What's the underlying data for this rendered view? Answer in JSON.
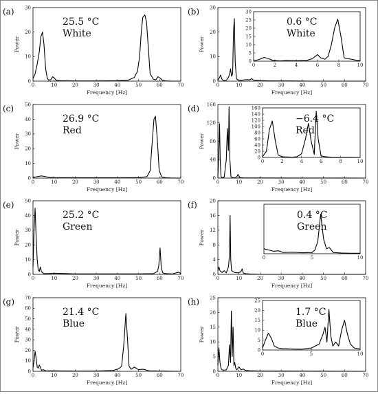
{
  "chart_data": [
    {
      "panel": "(a)",
      "type": "line",
      "annotation": [
        "25.5 °C",
        "White"
      ],
      "xlabel": "Frequency [Hz]",
      "ylabel": "Power",
      "xlim": [
        0,
        70
      ],
      "ylim": [
        0,
        30
      ],
      "xticks": [
        0,
        10,
        20,
        30,
        40,
        50,
        60,
        70
      ],
      "yticks": [
        0,
        10,
        20,
        30
      ],
      "x": [
        0,
        1,
        2,
        3,
        3.7,
        4.5,
        5.2,
        6,
        6.8,
        7.5,
        8.5,
        9.3,
        10.2,
        11,
        13,
        20,
        30,
        40,
        45,
        48,
        49.5,
        50.5,
        51.3,
        52,
        53,
        53.8,
        54.6,
        55.5,
        57,
        58.2,
        59.2,
        60.2,
        61.5,
        63,
        66,
        70
      ],
      "series": [
        {
          "values": [
            1,
            3,
            7,
            12,
            18,
            20,
            15,
            5,
            1,
            0.4,
            0.6,
            1.8,
            1.2,
            0.3,
            0.2,
            0.1,
            0.1,
            0.2,
            0.4,
            1.5,
            4,
            10,
            20,
            26,
            27,
            24,
            14,
            3,
            0.8,
            0.5,
            1.8,
            1.2,
            0.3,
            0.1,
            0,
            0
          ]
        }
      ]
    },
    {
      "panel": "(b)",
      "type": "line",
      "annotation": [
        "0.6 °C",
        "White"
      ],
      "xlabel": "Frequency [Hz]",
      "ylabel": "Power",
      "xlim": [
        0,
        70
      ],
      "ylim": [
        0,
        30
      ],
      "xticks": [
        0,
        10,
        20,
        30,
        40,
        50,
        60,
        70
      ],
      "yticks": [
        0,
        10,
        20,
        30
      ],
      "x": [
        0,
        0.8,
        1.3,
        1.8,
        2.5,
        4,
        5,
        5.6,
        6,
        6.5,
        7,
        7.4,
        7.8,
        8.2,
        8.8,
        9.5,
        11,
        13,
        15,
        16,
        17,
        20,
        25,
        35,
        45,
        55,
        70
      ],
      "series": [
        {
          "values": [
            0.5,
            1.5,
            2.5,
            1,
            0.3,
            0.4,
            1.5,
            3,
            5,
            2,
            3,
            20,
            25.5,
            8,
            1,
            0.5,
            0.3,
            0.6,
            0.5,
            1,
            0.4,
            0.2,
            0.1,
            0.1,
            0,
            0,
            0
          ]
        }
      ],
      "inset": {
        "xlim": [
          0,
          10
        ],
        "ylim": [
          0,
          30
        ],
        "xticks": [
          0,
          2,
          4,
          6,
          8,
          10
        ],
        "yticks": [
          0,
          5,
          10,
          15,
          20,
          25,
          30
        ],
        "x": [
          0,
          0.5,
          1,
          1.4,
          1.8,
          2.5,
          3,
          4,
          5,
          5.5,
          6,
          6.3,
          6.7,
          7,
          7.3,
          7.6,
          7.9,
          8.2,
          8.5,
          8.8,
          9.2,
          9.6,
          10
        ],
        "values": [
          0.2,
          1,
          2.3,
          1.5,
          0.5,
          0.2,
          0.4,
          0.3,
          0.5,
          1.5,
          4,
          2,
          1.2,
          3,
          10,
          20,
          25.5,
          15,
          2,
          1.5,
          1.2,
          0.6,
          0.3
        ]
      }
    },
    {
      "panel": "(c)",
      "type": "line",
      "annotation": [
        "26.9 °C",
        "Red"
      ],
      "xlabel": "Frequency [Hz]",
      "ylabel": "Power",
      "xlim": [
        0,
        70
      ],
      "ylim": [
        0,
        50
      ],
      "xticks": [
        0,
        10,
        20,
        30,
        40,
        50,
        60,
        70
      ],
      "yticks": [
        0,
        10,
        20,
        30,
        40,
        50
      ],
      "x": [
        0,
        2,
        4,
        6,
        8,
        10,
        20,
        30,
        40,
        50,
        54,
        55.5,
        56.5,
        57.3,
        58,
        58.8,
        59.8,
        61,
        63,
        65,
        70
      ],
      "series": [
        {
          "values": [
            0.4,
            1,
            1.5,
            1,
            0.4,
            0.3,
            0.2,
            0.2,
            0.2,
            0.3,
            1,
            5,
            25,
            40,
            42,
            28,
            5,
            0.8,
            0.2,
            0.1,
            0
          ]
        }
      ]
    },
    {
      "panel": "(d)",
      "type": "line",
      "annotation": [
        "−6.4 °C",
        "Red"
      ],
      "xlabel": "Frequency [Hz]",
      "ylabel": "Power",
      "xlim": [
        0,
        70
      ],
      "ylim": [
        0,
        160
      ],
      "xticks": [
        0,
        10,
        20,
        30,
        40,
        50,
        60,
        70
      ],
      "yticks": [
        0,
        40,
        80,
        120,
        160
      ],
      "x": [
        0,
        0.4,
        0.8,
        1.1,
        1.5,
        2,
        3,
        4,
        4.5,
        5,
        5.3,
        5.7,
        6.2,
        7,
        8,
        9,
        9.5,
        10.5,
        12,
        20,
        40,
        70
      ],
      "series": [
        {
          "values": [
            2,
            50,
            118,
            40,
            3,
            1,
            2,
            40,
            108,
            60,
            155,
            40,
            3,
            1,
            0.5,
            3,
            8,
            1,
            0.5,
            0.3,
            0.2,
            0
          ]
        }
      ],
      "inset": {
        "xlim": [
          0,
          10
        ],
        "ylim": [
          0,
          160
        ],
        "xticks": [
          0,
          2,
          4,
          6,
          8,
          10
        ],
        "yticks": [
          0,
          20,
          40,
          60,
          80,
          100,
          120,
          140,
          160
        ],
        "x": [
          0,
          0.4,
          0.7,
          1,
          1.3,
          1.6,
          2,
          3,
          3.5,
          4,
          4.4,
          4.7,
          5,
          5.3,
          5.5,
          5.7,
          6,
          6.5,
          7,
          8,
          9,
          10
        ],
        "values": [
          3,
          20,
          90,
          118,
          55,
          8,
          2,
          1,
          2,
          12,
          60,
          110,
          50,
          10,
          150,
          60,
          5,
          2,
          1,
          0.5,
          0.5,
          0.3
        ]
      }
    },
    {
      "panel": "(e)",
      "type": "line",
      "annotation": [
        "25.2 °C",
        "Green"
      ],
      "xlabel": "Frequency [Hz]",
      "ylabel": "Power",
      "xlim": [
        0,
        70
      ],
      "ylim": [
        0,
        50
      ],
      "xticks": [
        0,
        10,
        20,
        30,
        40,
        50,
        60,
        70
      ],
      "yticks": [
        0,
        10,
        20,
        30,
        40,
        50
      ],
      "x": [
        0,
        0.5,
        1,
        1.5,
        2,
        2.5,
        3,
        3.5,
        4,
        5,
        7,
        10,
        20,
        30,
        40,
        50,
        57,
        59,
        59.6,
        60.2,
        60.8,
        61.5,
        63,
        66,
        69,
        70
      ],
      "series": [
        {
          "values": [
            5,
            30,
            45,
            25,
            10,
            3,
            2,
            5,
            2,
            0.5,
            0.5,
            0.8,
            0.3,
            0.3,
            0.3,
            0.3,
            0.5,
            2,
            6,
            18,
            4,
            1,
            0.5,
            0.3,
            1.5,
            0.5
          ]
        }
      ]
    },
    {
      "panel": "(f)",
      "type": "line",
      "annotation": [
        "0.4 °C",
        "Green"
      ],
      "xlabel": "Frequency [Hz]",
      "ylabel": "Power",
      "xlim": [
        0,
        70
      ],
      "ylim": [
        0,
        20
      ],
      "xticks": [
        0,
        10,
        20,
        30,
        40,
        50,
        60,
        70
      ],
      "yticks": [
        0,
        4,
        8,
        12,
        16,
        20
      ],
      "x": [
        0,
        0.5,
        1,
        2,
        3,
        4,
        5,
        5.5,
        5.8,
        6.1,
        6.5,
        7,
        8,
        10,
        11,
        11.5,
        12,
        13,
        15,
        20,
        30,
        70
      ],
      "series": [
        {
          "values": [
            1,
            2,
            1,
            0.5,
            1,
            0.4,
            2,
            5,
            16,
            4,
            1,
            0.8,
            0.5,
            0.4,
            0.8,
            1.5,
            0.4,
            0.2,
            0.1,
            0,
            0,
            0
          ]
        }
      ],
      "inset": {
        "xlim": [
          0,
          10
        ],
        "ylim": [
          0,
          20
        ],
        "xticks": [
          0,
          5,
          10
        ],
        "yticks": [],
        "x": [
          0,
          0.5,
          1,
          1.5,
          2,
          3,
          4,
          5,
          5.3,
          5.6,
          5.9,
          6.2,
          6.5,
          6.8,
          7.2,
          8,
          9,
          10
        ],
        "values": [
          2,
          1.5,
          1,
          1.2,
          0.5,
          0.6,
          0.4,
          0.5,
          1.5,
          5,
          16,
          6,
          2,
          2.5,
          0.5,
          0.3,
          0.2,
          0.2
        ]
      }
    },
    {
      "panel": "(g)",
      "type": "line",
      "annotation": [
        "21.4 °C",
        "Blue"
      ],
      "xlabel": "Frequency [Hz]",
      "ylabel": "Power",
      "xlim": [
        0,
        70
      ],
      "ylim": [
        0,
        70
      ],
      "xticks": [
        0,
        10,
        20,
        30,
        40,
        50,
        60,
        70
      ],
      "yticks": [
        0,
        10,
        20,
        30,
        40,
        50,
        60,
        70
      ],
      "x": [
        0,
        0.5,
        1,
        1.5,
        2,
        2.5,
        3,
        3.5,
        4,
        5,
        6,
        8,
        10,
        20,
        30,
        38,
        40,
        41,
        42,
        43,
        44,
        44.8,
        45.5,
        46.5,
        48,
        50,
        52,
        55,
        60,
        70
      ],
      "series": [
        {
          "values": [
            3,
            10,
            19,
            12,
            4,
            3,
            6,
            4,
            1,
            1.5,
            0.5,
            0.5,
            0.5,
            0.3,
            0.3,
            0.8,
            2,
            3,
            5,
            25,
            55,
            30,
            5,
            2,
            4,
            1.5,
            2,
            0.5,
            0.3,
            0
          ]
        }
      ]
    },
    {
      "panel": "(h)",
      "type": "line",
      "annotation": [
        "1.7 °C",
        "Blue"
      ],
      "xlabel": "Frequency [Hz]",
      "ylabel": "Power",
      "xlim": [
        0,
        70
      ],
      "ylim": [
        0,
        25
      ],
      "xticks": [
        0,
        10,
        20,
        30,
        40,
        50,
        60,
        70
      ],
      "yticks": [
        0,
        5,
        10,
        15,
        20,
        25
      ],
      "x": [
        0,
        0.5,
        1,
        1.5,
        2,
        3,
        4,
        5,
        5.5,
        6,
        6.4,
        6.8,
        7.2,
        7.6,
        8,
        8.5,
        9,
        10,
        11,
        12,
        13,
        15,
        20,
        30,
        70
      ],
      "series": [
        {
          "values": [
            2,
            8,
            3,
            1,
            0.5,
            0.4,
            0.5,
            2,
            9,
            3,
            20.5,
            5,
            15,
            2,
            3,
            1,
            0.5,
            1.5,
            0.5,
            0.8,
            0.3,
            0.2,
            0.1,
            0.1,
            0
          ]
        }
      ],
      "inset": {
        "xlim": [
          0,
          10
        ],
        "ylim": [
          0,
          25
        ],
        "xticks": [
          0,
          5,
          10
        ],
        "yticks": [
          0,
          5,
          10,
          15,
          20,
          25
        ],
        "x": [
          0,
          0.3,
          0.6,
          0.9,
          1.2,
          1.6,
          2,
          3,
          4,
          5,
          5.8,
          6.2,
          6.4,
          6.6,
          6.8,
          7,
          7.2,
          7.5,
          7.8,
          8.1,
          8.4,
          8.7,
          9,
          9.4,
          10
        ],
        "values": [
          1,
          5,
          8.5,
          6,
          2,
          1,
          0.7,
          0.5,
          0.4,
          1,
          3,
          8,
          11.5,
          4,
          20.5,
          7,
          2,
          4,
          2,
          10,
          15,
          8,
          3,
          1,
          0.5
        ]
      }
    }
  ]
}
